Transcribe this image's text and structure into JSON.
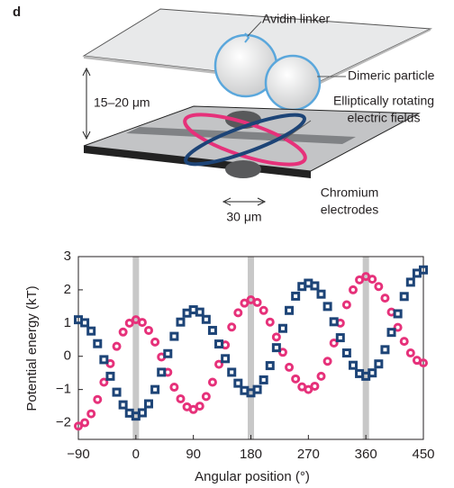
{
  "panel_label": "d",
  "diagram": {
    "avidin_linker": "Avidin linker",
    "dimeric_particle": "Dimeric particle",
    "fields": [
      "Elliptically rotating",
      "electric fields"
    ],
    "gap": "15–20 μm",
    "electrodes": [
      "Chromium",
      "electrodes"
    ],
    "width": "30 μm"
  },
  "chart_data": {
    "type": "scatter",
    "xlabel": "Angular position (°)",
    "ylabel": "Potential energy (kT)",
    "xlim": [
      -90,
      450
    ],
    "ylim": [
      -2.5,
      3
    ],
    "xticks": [
      {
        "value": -90,
        "label": "−90"
      },
      0,
      90,
      180,
      270,
      360,
      450
    ],
    "yticks": [
      {
        "value": -2,
        "label": "−2"
      },
      {
        "value": -1,
        "label": "−1"
      },
      0,
      1,
      2,
      3
    ],
    "bands": [
      0,
      180,
      360
    ],
    "band_color": "#c8c8c8",
    "x": [
      -90,
      -80,
      -70,
      -60,
      -50,
      -40,
      -30,
      -20,
      -10,
      0,
      10,
      20,
      30,
      40,
      50,
      60,
      70,
      80,
      90,
      100,
      110,
      120,
      130,
      140,
      150,
      160,
      170,
      180,
      190,
      200,
      210,
      220,
      230,
      240,
      250,
      260,
      270,
      280,
      290,
      300,
      310,
      320,
      330,
      340,
      350,
      360,
      370,
      380,
      390,
      400,
      410,
      420,
      430,
      440,
      450
    ],
    "series": [
      {
        "color": "#e6317a",
        "marker": "circle",
        "values": [
          -2.1,
          -2.0,
          -1.73,
          -1.3,
          -0.78,
          -0.22,
          0.3,
          0.73,
          1.0,
          1.1,
          1.02,
          0.78,
          0.43,
          -0.02,
          -0.48,
          -0.93,
          -1.28,
          -1.52,
          -1.6,
          -1.5,
          -1.21,
          -0.78,
          -0.24,
          0.34,
          0.88,
          1.31,
          1.6,
          1.7,
          1.62,
          1.38,
          1.03,
          0.58,
          0.12,
          -0.33,
          -0.68,
          -0.92,
          -1.0,
          -0.9,
          -0.6,
          -0.15,
          0.4,
          1.0,
          1.55,
          2.0,
          2.3,
          2.4,
          2.32,
          2.1,
          1.75,
          1.33,
          0.87,
          0.45,
          0.1,
          -0.12,
          -0.2
        ]
      },
      {
        "color": "#1d4477",
        "marker": "square",
        "values": [
          1.1,
          1.01,
          0.76,
          0.38,
          -0.1,
          -0.6,
          -1.08,
          -1.46,
          -1.71,
          -1.8,
          -1.7,
          -1.43,
          -1.0,
          -0.48,
          0.08,
          0.6,
          1.03,
          1.3,
          1.4,
          1.33,
          1.11,
          0.78,
          0.37,
          -0.07,
          -0.48,
          -0.81,
          -1.03,
          -1.1,
          -1.0,
          -0.71,
          -0.28,
          0.26,
          0.84,
          1.38,
          1.81,
          2.1,
          2.2,
          2.12,
          1.87,
          1.5,
          1.04,
          0.56,
          0.1,
          -0.27,
          -0.52,
          -0.6,
          -0.5,
          -0.23,
          0.2,
          0.72,
          1.28,
          1.8,
          2.23,
          2.5,
          2.6
        ]
      }
    ]
  }
}
